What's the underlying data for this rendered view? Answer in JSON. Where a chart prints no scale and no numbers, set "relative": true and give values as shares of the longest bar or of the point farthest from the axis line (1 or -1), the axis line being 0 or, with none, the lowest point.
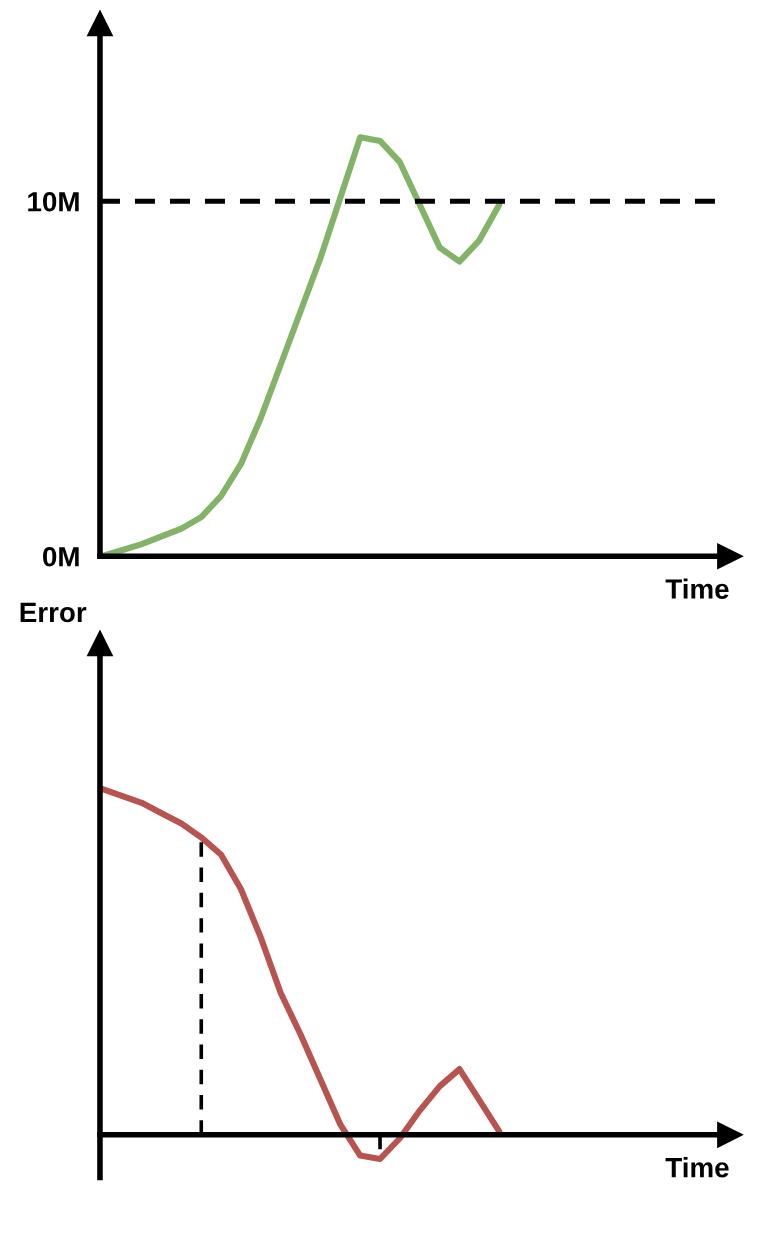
{
  "chart_data": [
    {
      "type": "line",
      "xlabel": "Time",
      "categories": [
        null,
        null,
        null,
        null,
        null,
        null,
        null,
        null,
        null,
        null,
        null,
        null,
        null,
        null,
        null,
        null,
        null,
        null,
        null,
        null,
        null
      ],
      "series": [
        {
          "color": "#82b366",
          "values": [
            0,
            0.17,
            0.34,
            0.56,
            0.78,
            1.1,
            1.7,
            2.6,
            3.9,
            5.4,
            6.9,
            8.4,
            10.1,
            11.8,
            11.7,
            11.1,
            9.9,
            8.7,
            8.3,
            8.9,
            9.9
          ]
        }
      ],
      "ylim": [
        0,
        15
      ],
      "yticks": [
        {
          "value": 0,
          "label": "0M"
        },
        {
          "value": 10,
          "label": "10M"
        }
      ],
      "ref_lines": [
        {
          "axis": "y",
          "value": 10,
          "color": "#000000",
          "line_style": "dashed"
        }
      ],
      "tick_labels": "y",
      "grid": false,
      "legend": false
    },
    {
      "type": "line",
      "xlabel": "Time",
      "ylabel": "Error",
      "relative": true,
      "categories": [
        null,
        null,
        null,
        null,
        null,
        null,
        null,
        null,
        null,
        null,
        null,
        null,
        null,
        null,
        null,
        null,
        null,
        null,
        null,
        null,
        null
      ],
      "series": [
        {
          "color": "#b85450",
          "values": [
            1,
            0.98,
            0.96,
            0.93,
            0.9,
            0.86,
            0.81,
            0.71,
            0.57,
            0.41,
            0.29,
            0.16,
            0.03,
            -0.06,
            -0.07,
            -0.01,
            0.07,
            0.14,
            0.19,
            0.1,
            0.01
          ]
        }
      ],
      "tick_labels": false,
      "grid": false,
      "legend": false
    }
  ]
}
